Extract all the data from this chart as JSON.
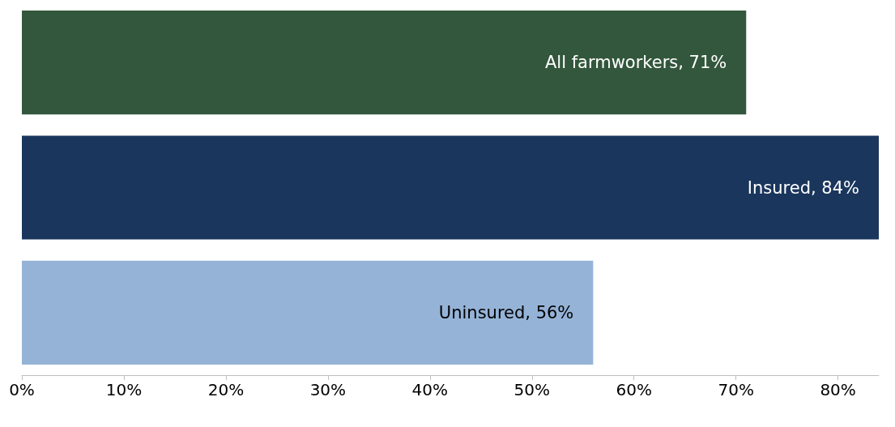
{
  "chart_data": {
    "type": "bar",
    "orientation": "horizontal",
    "categories": [
      null,
      null,
      null
    ],
    "values": [
      71,
      84,
      56
    ],
    "colors": [
      "#33573c",
      "#1a365d",
      "#95b3d7"
    ],
    "value_labels": [
      "All farmworkers, 71%",
      "Insured, 84%",
      "Uninsured, 56%"
    ],
    "xlim": [
      0,
      84
    ],
    "xticks": [
      {
        "value": 0,
        "label": "0%"
      },
      {
        "value": 10,
        "label": "10%"
      },
      {
        "value": 20,
        "label": "20%"
      },
      {
        "value": 30,
        "label": "30%"
      },
      {
        "value": 40,
        "label": "40%"
      },
      {
        "value": 50,
        "label": "50%"
      },
      {
        "value": 60,
        "label": "60%"
      },
      {
        "value": 70,
        "label": "70%"
      },
      {
        "value": 80,
        "label": "80%"
      }
    ],
    "tick_labels": "x",
    "grid": false
  }
}
